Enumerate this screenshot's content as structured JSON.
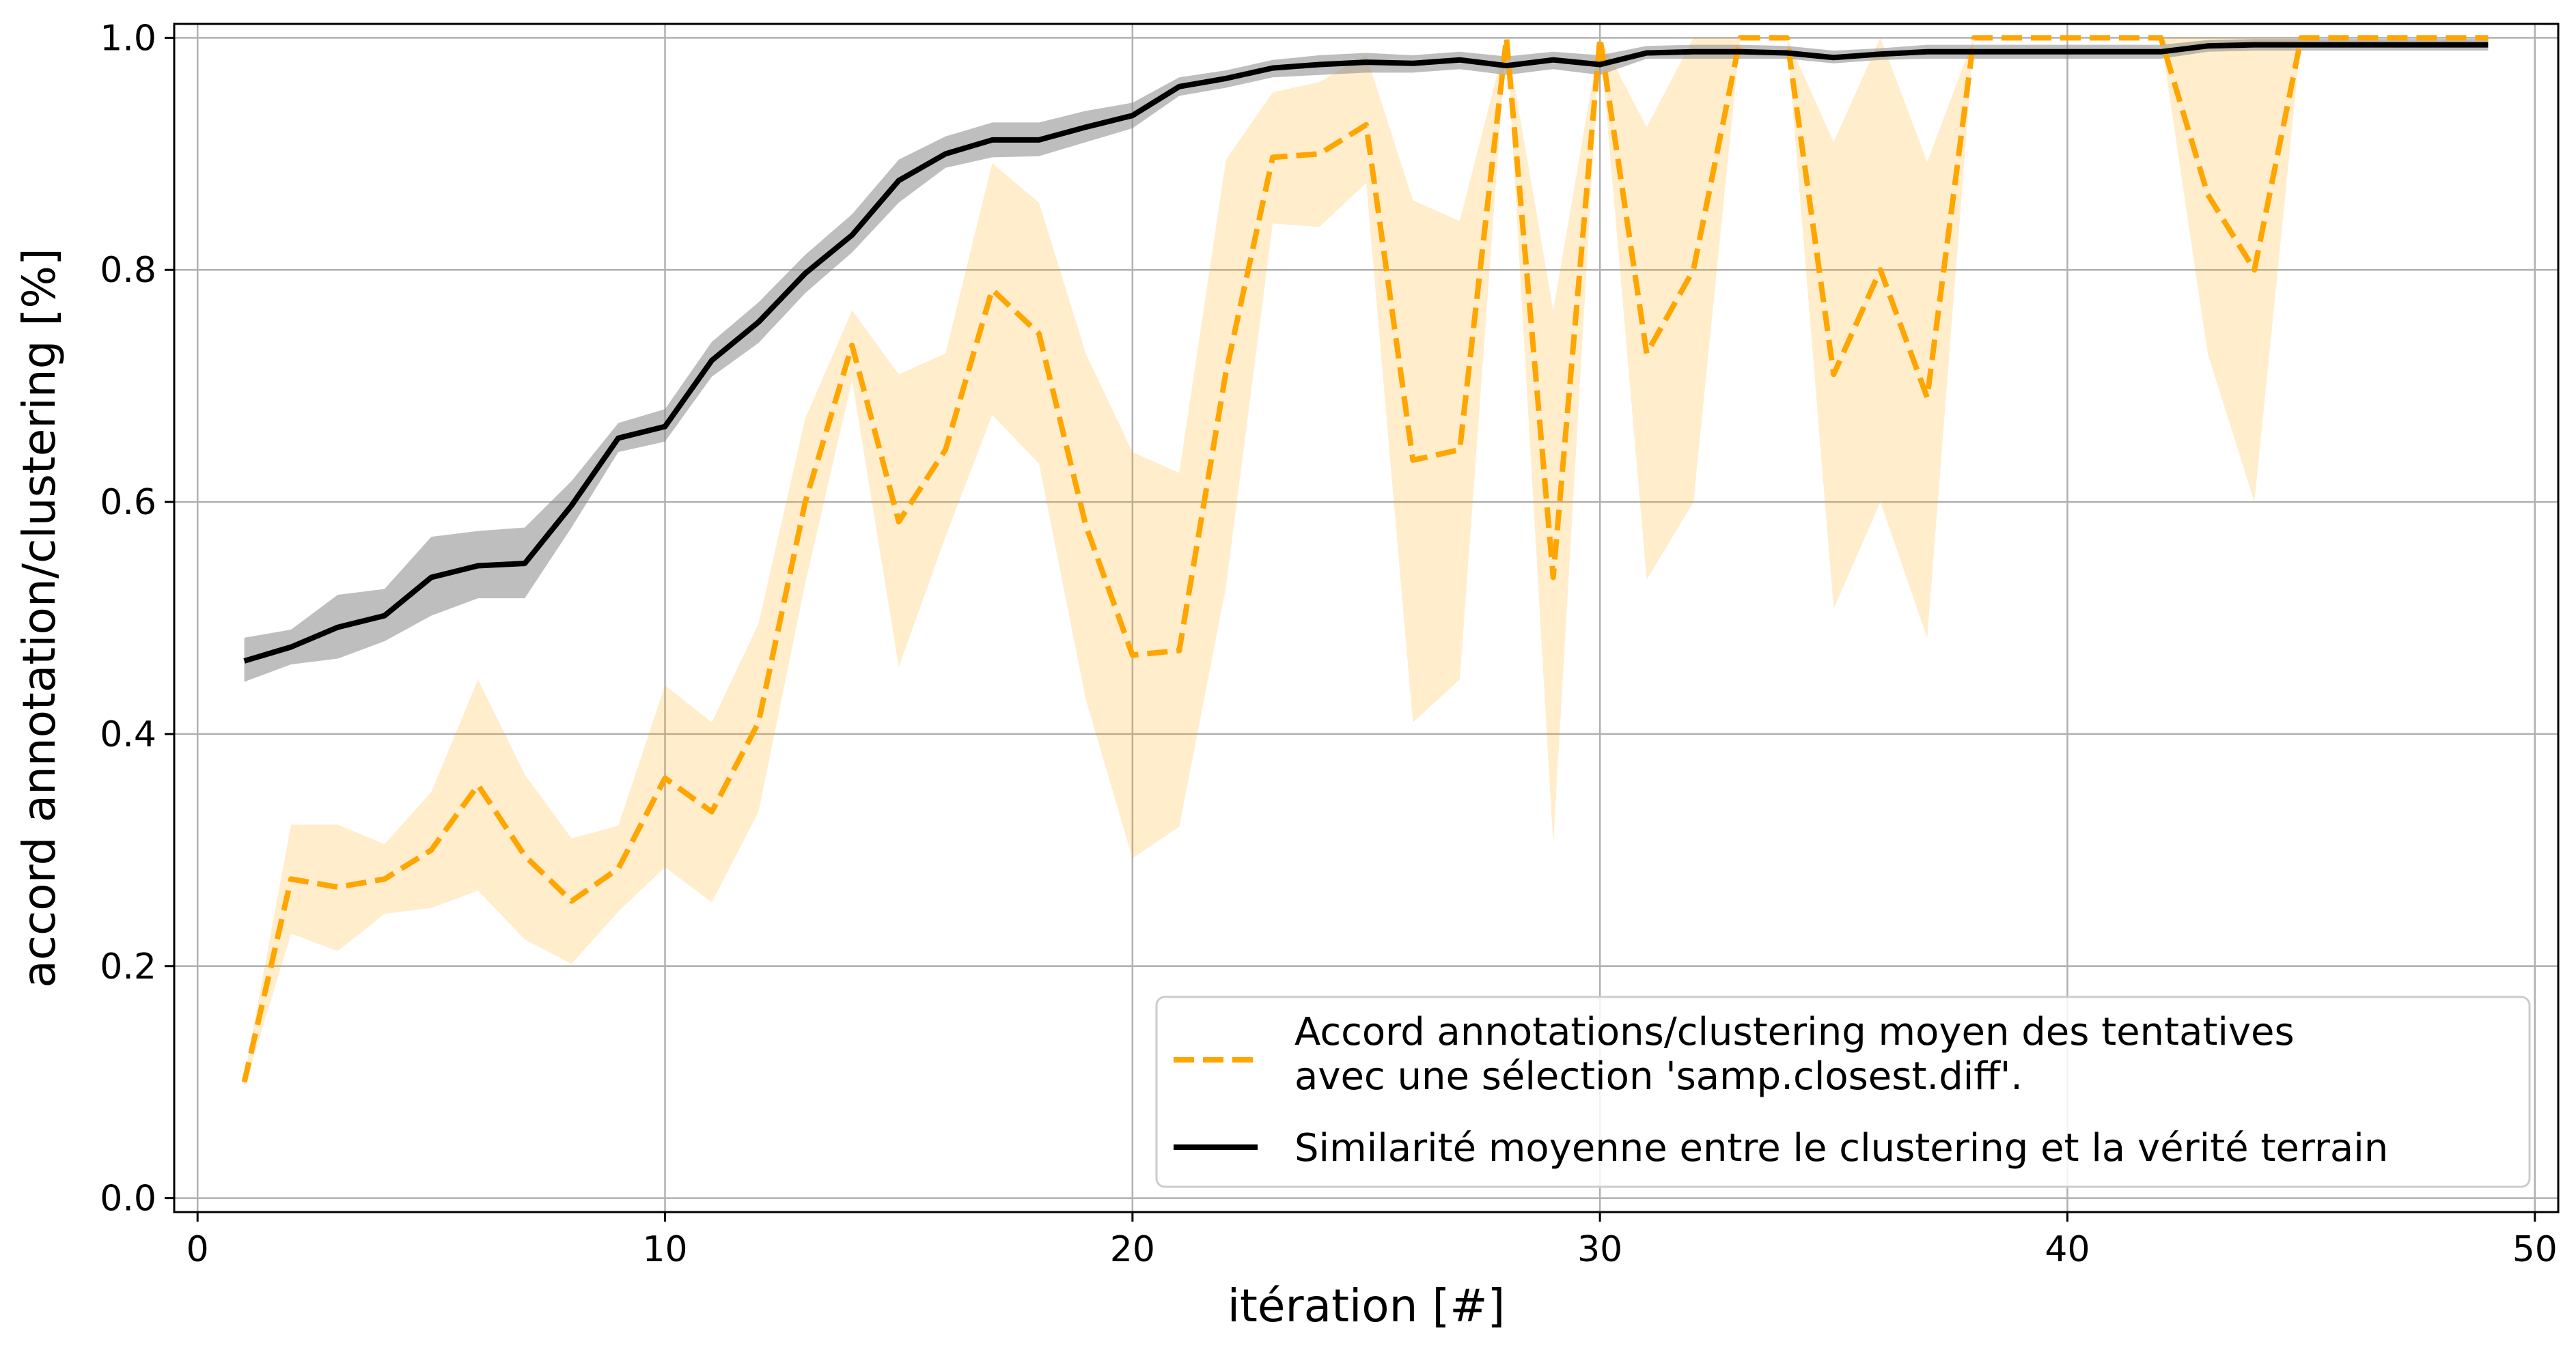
{
  "chart_data": {
    "type": "line",
    "xlabel": "itération [#]",
    "ylabel": "accord annotation/clustering [%]",
    "xlim": [
      -0.5,
      50.5
    ],
    "ylim": [
      -0.012,
      1.012
    ],
    "xticks": [
      0,
      10,
      20,
      30,
      40,
      50
    ],
    "xtick_labels": [
      "0",
      "10",
      "20",
      "30",
      "40",
      "50"
    ],
    "yticks": [
      0.0,
      0.2,
      0.4,
      0.6,
      0.8,
      1.0
    ],
    "ytick_labels": [
      "0.0",
      "0.2",
      "0.4",
      "0.6",
      "0.8",
      "1.0"
    ],
    "grid": true,
    "legend_position": "bottom-right",
    "x": [
      1,
      2,
      3,
      4,
      5,
      6,
      7,
      8,
      9,
      10,
      11,
      12,
      13,
      14,
      15,
      16,
      17,
      18,
      19,
      20,
      21,
      22,
      23,
      24,
      25,
      26,
      27,
      28,
      29,
      30,
      31,
      32,
      33,
      34,
      35,
      36,
      37,
      38,
      39,
      40,
      41,
      42,
      43,
      44,
      45,
      46,
      47,
      48,
      49
    ],
    "series": [
      {
        "name": "Accord annotations/clustering moyen des tentatives avec une sélection 'samp.closest.diff'.",
        "legend_lines": [
          "Accord annotations/clustering moyen des tentatives",
          "avec une sélection 'samp.closest.diff'."
        ],
        "color": "#FFA500",
        "style": "dashed",
        "values": [
          0.1,
          0.275,
          0.268,
          0.275,
          0.3,
          0.356,
          0.295,
          0.256,
          0.284,
          0.362,
          0.333,
          0.41,
          0.6,
          0.735,
          0.583,
          0.645,
          0.783,
          0.745,
          0.58,
          0.468,
          0.472,
          0.712,
          0.897,
          0.9,
          0.925,
          0.636,
          0.645,
          1.0,
          0.535,
          1.0,
          0.728,
          0.8,
          1.0,
          1.0,
          0.71,
          0.8,
          0.69,
          1.0,
          1.0,
          1.0,
          1.0,
          1.0,
          0.865,
          0.8,
          1.0,
          1.0,
          1.0,
          1.0,
          1.0
        ],
        "lower": [
          0.095,
          0.228,
          0.213,
          0.245,
          0.25,
          0.265,
          0.223,
          0.202,
          0.247,
          0.285,
          0.255,
          0.333,
          0.53,
          0.705,
          0.458,
          0.57,
          0.675,
          0.633,
          0.43,
          0.293,
          0.32,
          0.527,
          0.84,
          0.837,
          0.875,
          0.41,
          0.447,
          1.0,
          0.305,
          1.0,
          0.533,
          0.6,
          1.0,
          1.0,
          0.508,
          0.6,
          0.483,
          1.0,
          1.0,
          1.0,
          1.0,
          1.0,
          0.728,
          0.6,
          1.0,
          1.0,
          1.0,
          1.0,
          1.0
        ],
        "upper": [
          0.105,
          0.322,
          0.322,
          0.305,
          0.35,
          0.447,
          0.365,
          0.31,
          0.321,
          0.442,
          0.41,
          0.495,
          0.672,
          0.765,
          0.71,
          0.728,
          0.892,
          0.858,
          0.728,
          0.643,
          0.625,
          0.895,
          0.953,
          0.962,
          0.985,
          0.86,
          0.842,
          1.0,
          0.765,
          1.0,
          0.923,
          1.0,
          1.0,
          1.0,
          0.91,
          1.0,
          0.893,
          1.0,
          1.0,
          1.0,
          1.0,
          1.0,
          1.0,
          1.0,
          1.0,
          1.0,
          1.0,
          1.0,
          1.0
        ]
      },
      {
        "name": "Similarité moyenne entre le clustering et la vérité terrain",
        "legend_lines": [
          "Similarité moyenne entre le clustering et la vérité terrain"
        ],
        "color": "#000000",
        "band_color": "#888888",
        "style": "solid",
        "values": [
          0.463,
          0.475,
          0.492,
          0.502,
          0.535,
          0.545,
          0.547,
          0.597,
          0.655,
          0.665,
          0.722,
          0.755,
          0.797,
          0.83,
          0.877,
          0.9,
          0.912,
          0.912,
          0.923,
          0.933,
          0.958,
          0.965,
          0.974,
          0.977,
          0.979,
          0.978,
          0.981,
          0.976,
          0.981,
          0.977,
          0.987,
          0.988,
          0.988,
          0.987,
          0.983,
          0.986,
          0.988,
          0.988,
          0.988,
          0.988,
          0.988,
          0.988,
          0.993,
          0.994,
          0.994,
          0.994,
          0.994,
          0.994,
          0.994
        ],
        "lower": [
          0.445,
          0.46,
          0.465,
          0.48,
          0.502,
          0.517,
          0.517,
          0.578,
          0.643,
          0.652,
          0.708,
          0.737,
          0.78,
          0.815,
          0.858,
          0.888,
          0.897,
          0.898,
          0.91,
          0.922,
          0.95,
          0.957,
          0.966,
          0.968,
          0.97,
          0.97,
          0.973,
          0.968,
          0.973,
          0.968,
          0.982,
          0.982,
          0.982,
          0.982,
          0.978,
          0.981,
          0.982,
          0.982,
          0.982,
          0.982,
          0.982,
          0.982,
          0.988,
          0.989,
          0.989,
          0.989,
          0.989,
          0.989,
          0.989
        ],
        "upper": [
          0.483,
          0.49,
          0.52,
          0.525,
          0.57,
          0.575,
          0.578,
          0.618,
          0.668,
          0.68,
          0.738,
          0.772,
          0.813,
          0.848,
          0.895,
          0.915,
          0.927,
          0.927,
          0.937,
          0.944,
          0.966,
          0.972,
          0.981,
          0.985,
          0.987,
          0.985,
          0.988,
          0.984,
          0.988,
          0.985,
          0.993,
          0.994,
          0.994,
          0.993,
          0.989,
          0.991,
          0.994,
          0.994,
          0.994,
          0.994,
          0.994,
          0.994,
          0.998,
          0.999,
          0.999,
          0.999,
          0.999,
          0.999,
          0.999
        ]
      }
    ]
  }
}
